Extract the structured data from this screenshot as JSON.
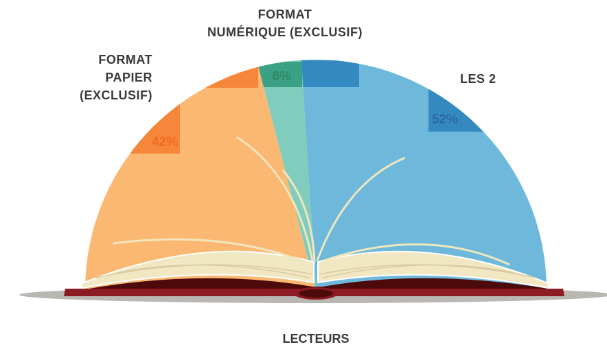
{
  "chart_data": {
    "type": "half-pie",
    "title": "LECTEURS",
    "categories": [
      "FORMAT\nPAPIER\n(EXCLUSIF)",
      "FORMAT\nNUMÉRIQUE (EXCLUSIF)",
      "LES 2"
    ],
    "values": [
      42,
      6,
      52
    ],
    "value_labels": [
      "42%",
      "6%",
      "52%"
    ],
    "colors": [
      "#fbb872",
      "#80cdbd",
      "#6eb9db"
    ]
  }
}
